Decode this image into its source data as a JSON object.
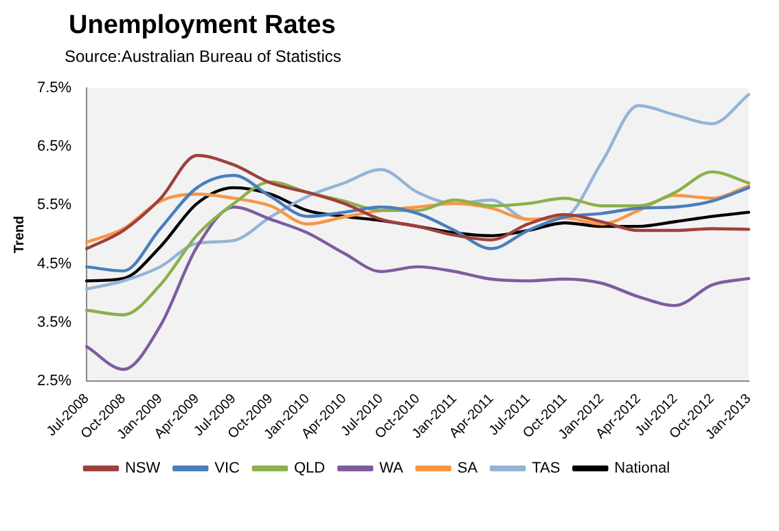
{
  "chart_data": {
    "type": "line",
    "title": "Unemployment Rates",
    "subtitle": "Source:Australian Bureau of Statistics",
    "ylabel": "Trend",
    "categories": [
      "Jul-2008",
      "Oct-2008",
      "Jan-2009",
      "Apr-2009",
      "Jul-2009",
      "Oct-2009",
      "Jan-2010",
      "Apr-2010",
      "Jul-2010",
      "Oct-2010",
      "Jan-2011",
      "Apr-2011",
      "Jul-2011",
      "Oct-2011",
      "Jan-2012",
      "Apr-2012",
      "Jul-2012",
      "Oct-2012",
      "Jan-2013"
    ],
    "series": [
      {
        "name": "NSW",
        "color": "#a0403c",
        "values": [
          4.76,
          5.07,
          5.61,
          6.35,
          6.19,
          5.88,
          5.72,
          5.53,
          5.26,
          5.14,
          4.99,
          4.91,
          5.18,
          5.34,
          5.22,
          5.07,
          5.07,
          5.1,
          5.09
        ]
      },
      {
        "name": "VIC",
        "color": "#4a7ebb",
        "values": [
          4.45,
          4.38,
          5.1,
          5.8,
          6.01,
          5.65,
          5.31,
          5.38,
          5.47,
          5.36,
          5.07,
          4.76,
          5.07,
          5.3,
          5.36,
          5.45,
          5.47,
          5.57,
          5.8
        ]
      },
      {
        "name": "QLD",
        "color": "#8cb04a",
        "values": [
          3.71,
          3.63,
          4.14,
          4.99,
          5.53,
          5.9,
          5.72,
          5.57,
          5.41,
          5.41,
          5.59,
          5.49,
          5.53,
          5.62,
          5.49,
          5.49,
          5.72,
          6.07,
          5.88
        ]
      },
      {
        "name": "WA",
        "color": "#7e5c9f",
        "values": [
          3.09,
          2.7,
          3.44,
          4.79,
          5.47,
          5.26,
          5.03,
          4.68,
          4.37,
          4.45,
          4.37,
          4.24,
          4.21,
          4.24,
          4.17,
          3.94,
          3.79,
          4.14,
          4.25
        ]
      },
      {
        "name": "SA",
        "color": "#f79646",
        "values": [
          4.87,
          5.1,
          5.57,
          5.69,
          5.62,
          5.49,
          5.18,
          5.3,
          5.41,
          5.47,
          5.53,
          5.45,
          5.26,
          5.28,
          5.18,
          5.41,
          5.67,
          5.62,
          5.83
        ]
      },
      {
        "name": "TAS",
        "color": "#95b3d7",
        "values": [
          4.07,
          4.21,
          4.45,
          4.85,
          4.9,
          5.3,
          5.65,
          5.88,
          6.11,
          5.72,
          5.53,
          5.59,
          5.26,
          5.3,
          6.23,
          7.2,
          7.04,
          6.89,
          7.39
        ]
      },
      {
        "name": "National",
        "color": "#000000",
        "values": [
          4.21,
          4.25,
          4.79,
          5.53,
          5.8,
          5.69,
          5.41,
          5.31,
          5.24,
          5.14,
          5.03,
          4.98,
          5.07,
          5.2,
          5.14,
          5.14,
          5.22,
          5.31,
          5.38
        ]
      }
    ],
    "ylim": [
      2.5,
      7.5
    ],
    "yticks": [
      {
        "value": 2.5,
        "label": "2.5%"
      },
      {
        "value": 3.5,
        "label": "3.5%"
      },
      {
        "value": 4.5,
        "label": "4.5%"
      },
      {
        "value": 5.5,
        "label": "5.5%"
      },
      {
        "value": 6.5,
        "label": "6.5%"
      },
      {
        "value": 7.5,
        "label": "7.5%"
      }
    ],
    "grid": false,
    "legend": "bottom",
    "marker": "none",
    "line_style": "solid"
  }
}
